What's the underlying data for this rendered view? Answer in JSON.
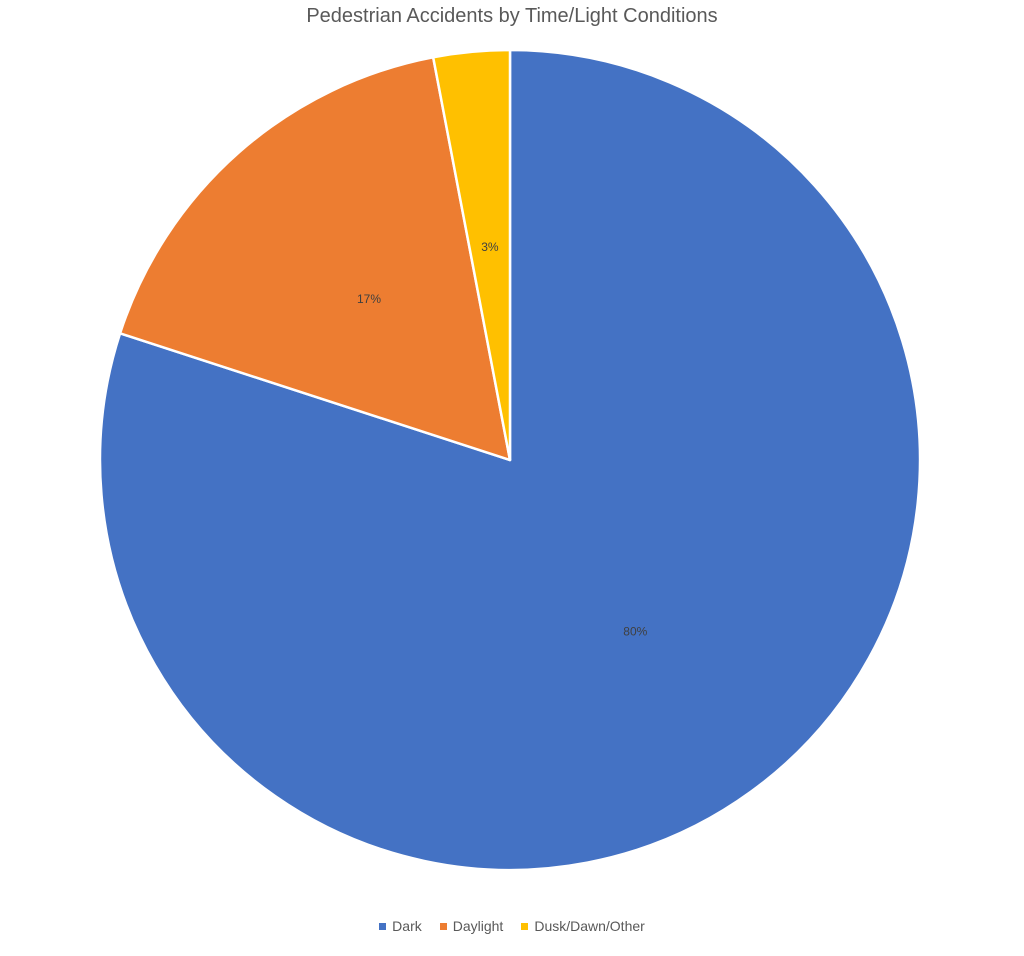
{
  "chart_data": {
    "type": "pie",
    "title": "Pedestrian Accidents by Time/Light Conditions",
    "categories": [
      "Dark",
      "Daylight",
      "Dusk/Dawn/Other"
    ],
    "values": [
      80,
      17,
      3
    ],
    "labels": [
      "80%",
      "17%",
      "3%"
    ],
    "colors": [
      "#4472C4",
      "#ED7D31",
      "#FFC000"
    ],
    "legend": "bottom"
  }
}
